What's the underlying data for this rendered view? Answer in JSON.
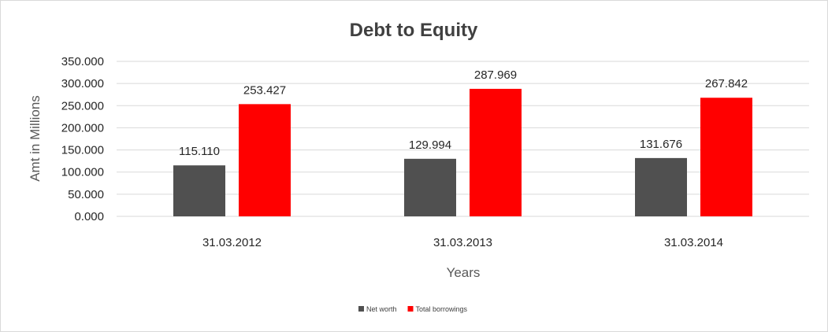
{
  "chart_data": {
    "type": "bar",
    "title": "Debt to Equity",
    "xlabel": "Years",
    "ylabel": "Amt in Millions",
    "categories": [
      "31.03.2012",
      "31.03.2013",
      "31.03.2014"
    ],
    "series": [
      {
        "name": "Net worth",
        "values": [
          115.11,
          129.994,
          131.676
        ],
        "color": "#505050"
      },
      {
        "name": "Total borrowings",
        "values": [
          253.427,
          287.969,
          267.842
        ],
        "color": "#ff0000"
      }
    ],
    "ylim": [
      0,
      350
    ],
    "yticks": [
      "0.000",
      "50.000",
      "100.000",
      "150.000",
      "200.000",
      "250.000",
      "300.000",
      "350.000"
    ],
    "data_labels": [
      [
        "115.110",
        "129.994",
        "131.676"
      ],
      [
        "253.427",
        "287.969",
        "267.842"
      ]
    ],
    "grid": true,
    "legend_position": "bottom"
  }
}
